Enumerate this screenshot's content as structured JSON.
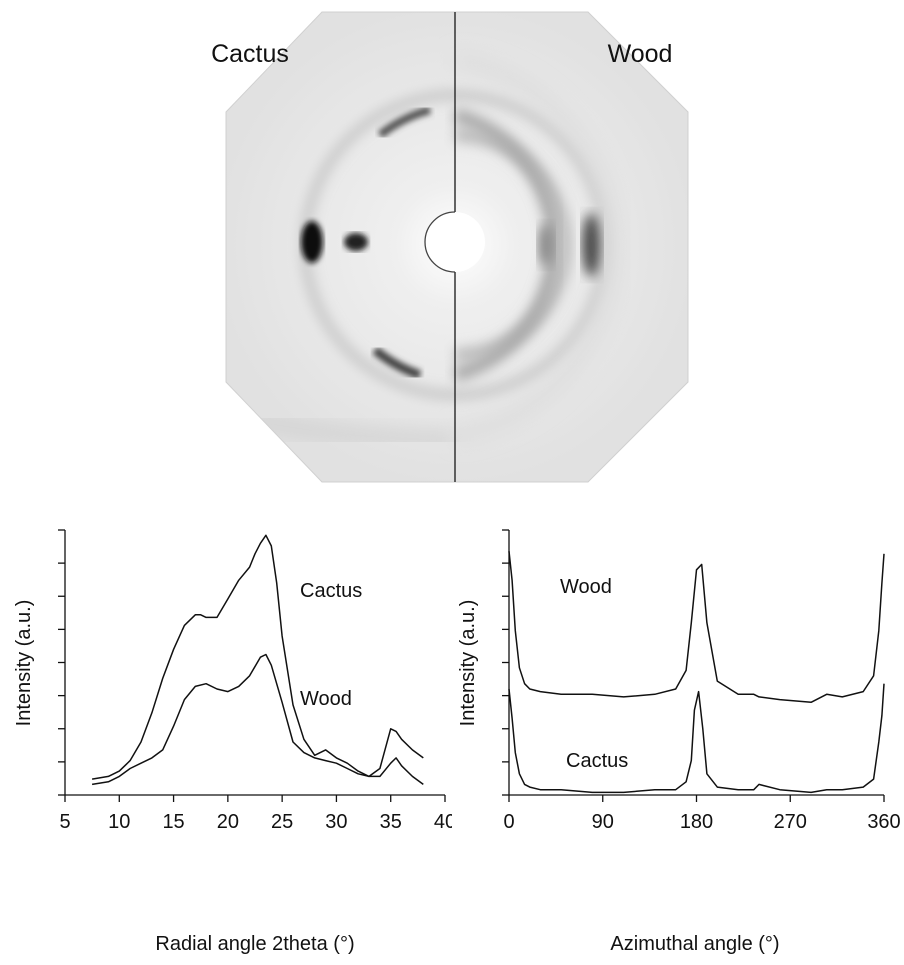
{
  "diffraction_image": {
    "left_label": "Cactus",
    "right_label": "Wood"
  },
  "chart_data": [
    {
      "type": "line",
      "xlabel": "Radial angle 2theta (°)",
      "ylabel": "Intensity (a.u.)",
      "xlim": [
        5,
        40
      ],
      "x_ticks": [
        "5",
        "10",
        "15",
        "20",
        "25",
        "30",
        "35",
        "40"
      ],
      "ylim": [
        0,
        1
      ],
      "grid": false,
      "series": [
        {
          "name": "Cactus",
          "x": [
            7.5,
            9,
            10,
            11,
            12,
            13,
            14,
            15,
            16,
            17,
            17.5,
            18,
            19,
            20,
            21,
            22,
            22.5,
            23,
            23.5,
            24,
            24.5,
            25,
            26,
            27,
            28,
            29,
            30,
            31,
            32,
            33,
            34,
            35,
            35.5,
            36,
            37,
            38
          ],
          "y": [
            0.06,
            0.07,
            0.09,
            0.13,
            0.2,
            0.31,
            0.44,
            0.55,
            0.64,
            0.68,
            0.68,
            0.67,
            0.67,
            0.74,
            0.81,
            0.86,
            0.91,
            0.95,
            0.98,
            0.94,
            0.8,
            0.6,
            0.34,
            0.21,
            0.15,
            0.17,
            0.14,
            0.12,
            0.09,
            0.07,
            0.1,
            0.25,
            0.24,
            0.21,
            0.17,
            0.14
          ]
        },
        {
          "name": "Wood",
          "x": [
            7.5,
            9,
            10,
            11,
            12,
            13,
            14,
            15,
            16,
            17,
            18,
            19,
            20,
            21,
            22,
            23,
            23.5,
            24,
            25,
            26,
            27,
            28,
            29,
            30,
            31,
            32,
            33,
            34,
            35,
            35.5,
            36,
            37,
            38
          ],
          "y": [
            0.04,
            0.05,
            0.07,
            0.1,
            0.12,
            0.14,
            0.17,
            0.26,
            0.36,
            0.41,
            0.42,
            0.4,
            0.39,
            0.41,
            0.45,
            0.52,
            0.53,
            0.49,
            0.35,
            0.2,
            0.16,
            0.14,
            0.13,
            0.12,
            0.1,
            0.08,
            0.07,
            0.07,
            0.12,
            0.14,
            0.11,
            0.07,
            0.04
          ]
        }
      ]
    },
    {
      "type": "line",
      "xlabel": "Azimuthal angle (°)",
      "ylabel": "Intensity (a.u.)",
      "xlim": [
        0,
        360
      ],
      "x_ticks": [
        "0",
        "90",
        "180",
        "270",
        "360"
      ],
      "ylim": [
        0,
        1
      ],
      "grid": false,
      "series": [
        {
          "name": "Wood",
          "x": [
            0,
            3,
            6,
            10,
            15,
            20,
            30,
            50,
            80,
            110,
            140,
            160,
            170,
            175,
            180,
            185,
            190,
            200,
            220,
            235,
            240,
            260,
            290,
            305,
            320,
            340,
            350,
            355,
            358,
            360
          ],
          "y": [
            0.92,
            0.81,
            0.62,
            0.48,
            0.42,
            0.4,
            0.39,
            0.38,
            0.38,
            0.37,
            0.38,
            0.4,
            0.47,
            0.65,
            0.85,
            0.87,
            0.65,
            0.43,
            0.38,
            0.38,
            0.37,
            0.36,
            0.35,
            0.38,
            0.37,
            0.39,
            0.45,
            0.62,
            0.8,
            0.91
          ]
        },
        {
          "name": "Cactus",
          "x": [
            0,
            3,
            6,
            10,
            15,
            20,
            30,
            50,
            80,
            110,
            140,
            160,
            170,
            175,
            178,
            182,
            186,
            190,
            200,
            220,
            235,
            240,
            260,
            290,
            305,
            320,
            340,
            350,
            355,
            358,
            360
          ],
          "y": [
            0.4,
            0.29,
            0.16,
            0.08,
            0.04,
            0.03,
            0.02,
            0.02,
            0.01,
            0.01,
            0.02,
            0.02,
            0.05,
            0.13,
            0.32,
            0.39,
            0.25,
            0.08,
            0.03,
            0.02,
            0.02,
            0.04,
            0.02,
            0.01,
            0.02,
            0.02,
            0.03,
            0.06,
            0.2,
            0.3,
            0.42
          ]
        }
      ]
    }
  ]
}
